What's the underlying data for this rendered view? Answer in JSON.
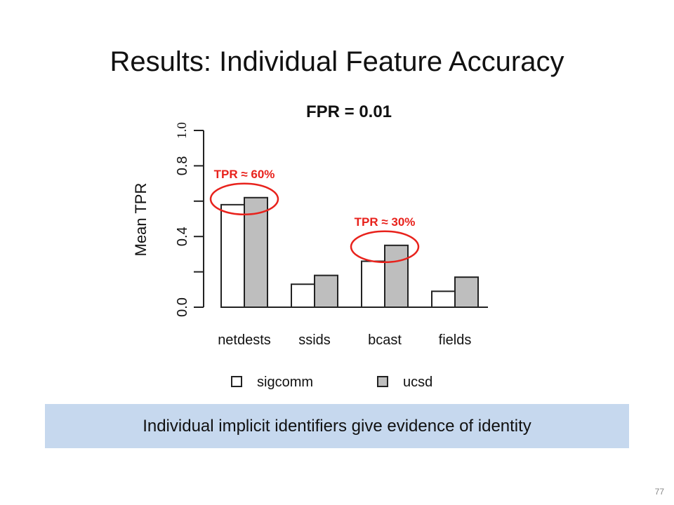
{
  "slide": {
    "title": "Results: Individual Feature Accuracy",
    "callout": "Individual implicit identifiers give evidence of identity",
    "page_number": "77"
  },
  "chart_data": {
    "type": "bar",
    "title": "FPR = 0.01",
    "ylabel": "Mean TPR",
    "xlabel": "",
    "ylim": [
      0,
      1.0
    ],
    "yticks": [
      0.0,
      0.4,
      0.8
    ],
    "yticks_minor": [
      0.2,
      0.6,
      1.0
    ],
    "ytick_extra_label": "1.0",
    "categories": [
      "netdests",
      "ssids",
      "bcast",
      "fields"
    ],
    "series": [
      {
        "name": "sigcomm",
        "values": [
          0.58,
          0.13,
          0.26,
          0.09
        ],
        "color": "#ffffff"
      },
      {
        "name": "ucsd",
        "values": [
          0.62,
          0.18,
          0.35,
          0.17
        ],
        "color": "#bebebe"
      }
    ],
    "legend_position": "bottom",
    "annotations": [
      {
        "text": "TPR ≈ 60%",
        "category": "netdests",
        "color": "#e8221c"
      },
      {
        "text": "TPR ≈ 30%",
        "category": "bcast",
        "color": "#e8221c"
      }
    ]
  }
}
